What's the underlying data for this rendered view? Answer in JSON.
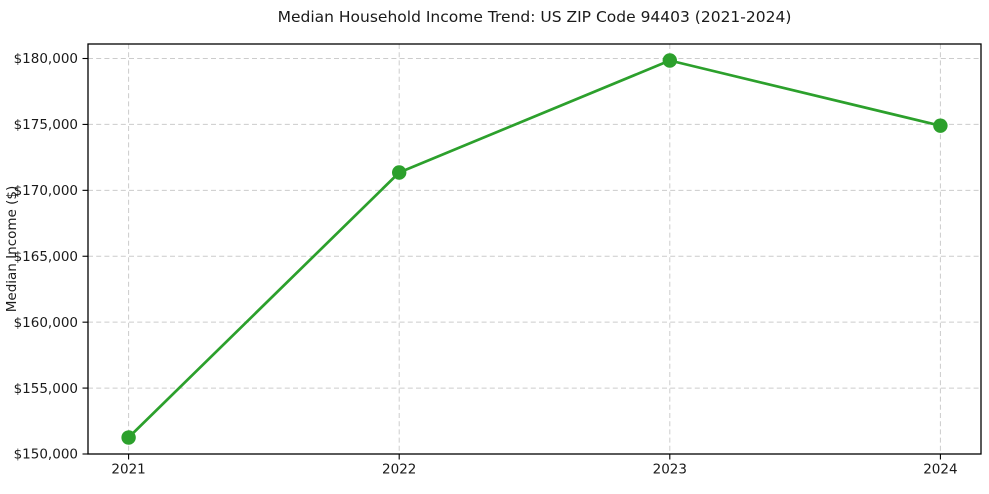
{
  "chart_data": {
    "type": "line",
    "title": "Median Household Income Trend: US ZIP Code 94403 (2021-2024)",
    "xlabel": "",
    "ylabel": "Median Income ($)",
    "x": [
      2021,
      2022,
      2023,
      2024
    ],
    "values": [
      151250,
      171350,
      179850,
      174900
    ],
    "xticks": [
      2021,
      2022,
      2023,
      2024
    ],
    "xtick_labels": [
      "2021",
      "2022",
      "2023",
      "2024"
    ],
    "yticks": [
      150000,
      155000,
      160000,
      165000,
      170000,
      175000,
      180000
    ],
    "ytick_labels": [
      "$150,000",
      "$155,000",
      "$160,000",
      "$165,000",
      "$170,000",
      "$175,000",
      "$180,000"
    ],
    "xlim": [
      2020.85,
      2024.15
    ],
    "ylim": [
      150000,
      181100
    ],
    "grid": true,
    "grid_style": "dashed",
    "legend": "none",
    "marker": "circle",
    "colors": {
      "line": "#2ca02c",
      "marker": "#2ca02c",
      "grid": "#cccccc",
      "spine": "#000000",
      "background": "#ffffff",
      "text": "#1a1a1a"
    }
  }
}
